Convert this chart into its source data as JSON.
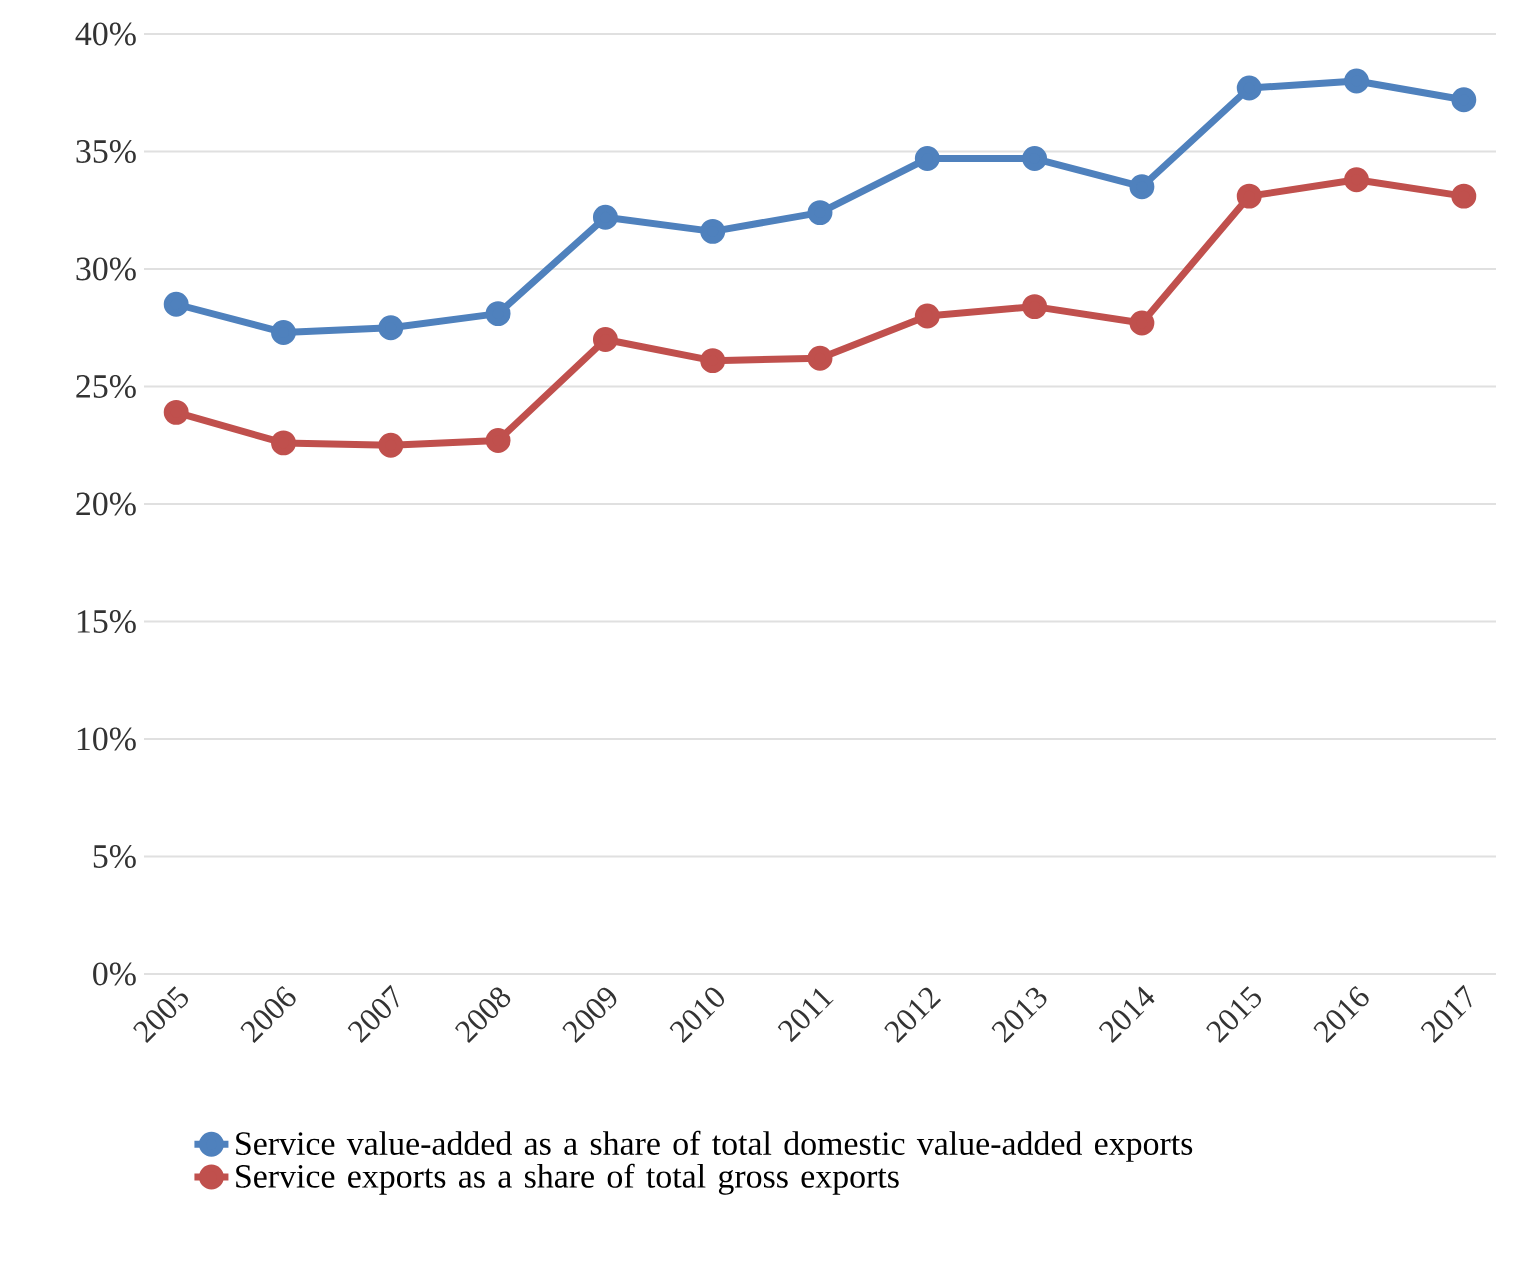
{
  "chart_data": {
    "type": "line",
    "categories": [
      "2005",
      "2006",
      "2007",
      "2008",
      "2009",
      "2010",
      "2011",
      "2012",
      "2013",
      "2014",
      "2015",
      "2016",
      "2017"
    ],
    "series": [
      {
        "name": "Service value-added as a share of total domestic value-added exports",
        "color": "#4f81bd",
        "values": [
          28.5,
          27.3,
          27.5,
          28.1,
          32.2,
          31.6,
          32.4,
          34.7,
          34.7,
          33.5,
          37.7,
          38.0,
          37.2
        ]
      },
      {
        "name": "Service exports as a share of total gross exports",
        "color": "#c0504d",
        "values": [
          23.9,
          22.6,
          22.5,
          22.7,
          27.0,
          26.1,
          26.2,
          28.0,
          28.4,
          27.7,
          33.1,
          33.8,
          33.1
        ]
      }
    ],
    "ylim": [
      0,
      40
    ],
    "yticks": [
      {
        "value": 0,
        "label": "0%"
      },
      {
        "value": 5,
        "label": "5%"
      },
      {
        "value": 10,
        "label": "10%"
      },
      {
        "value": 15,
        "label": "15%"
      },
      {
        "value": 20,
        "label": "20%"
      },
      {
        "value": 25,
        "label": "25%"
      },
      {
        "value": 30,
        "label": "30%"
      },
      {
        "value": 35,
        "label": "35%"
      },
      {
        "value": 40,
        "label": "40%"
      }
    ],
    "grid": "y",
    "legend": "bottom",
    "marker": "circle",
    "line_style": "solid"
  }
}
